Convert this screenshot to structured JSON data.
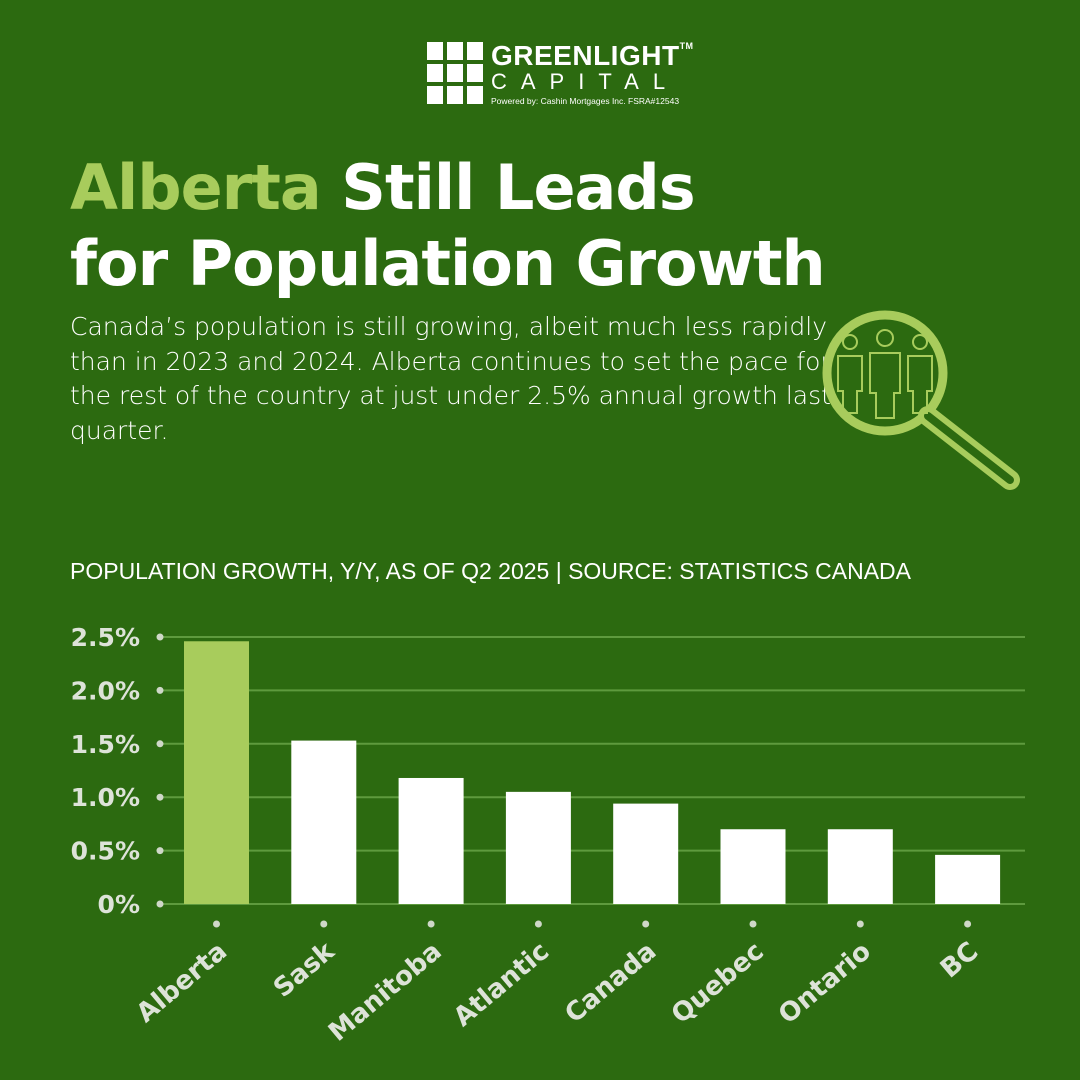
{
  "logo": {
    "name": "GREENLIGHT",
    "tm": "TM",
    "sub": "CAPITAL",
    "powered": "Powered by:  Cashin Mortgages Inc.  FSRA#12543"
  },
  "title": {
    "highlight": "Alberta",
    "rest1": " Still Leads",
    "line2": "for Population Growth"
  },
  "intro": "Canada’s population is still growing, albeit much less rapidly than in 2023 and 2024. Alberta continues to set the pace for the rest of the country at just under 2.5% annual growth last quarter.",
  "colors": {
    "background": "#2c6a10",
    "accent": "#a8cc5c",
    "bar": "#ffffff"
  },
  "chart_data": {
    "type": "bar",
    "title": "POPULATION GROWTH, Y/Y, AS OF Q2 2025 | SOURCE: STATISTICS CANADA",
    "categories": [
      "Alberta",
      "Sask",
      "Manitoba",
      "Atlantic",
      "Canada",
      "Quebec",
      "Ontario",
      "BC"
    ],
    "values": [
      2.46,
      1.53,
      1.18,
      1.05,
      0.94,
      0.7,
      0.7,
      0.46
    ],
    "highlight": "Alberta",
    "yticks": [
      0,
      0.5,
      1.0,
      1.5,
      2.0,
      2.5
    ],
    "ytick_labels": [
      "0%",
      "0.5%",
      "1.0%",
      "1.5%",
      "2.0%",
      "2.5%"
    ],
    "ylim": [
      0,
      2.5
    ],
    "xlabel": "",
    "ylabel": "",
    "grid": true
  }
}
